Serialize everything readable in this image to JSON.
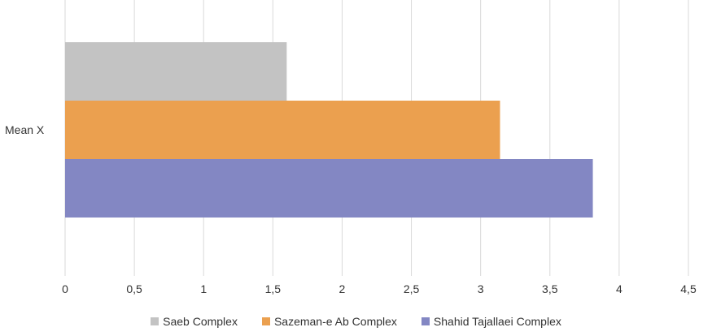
{
  "chart_data": {
    "type": "bar",
    "orientation": "horizontal",
    "categories": [
      "Mean X"
    ],
    "series": [
      {
        "name": "Saeb Complex",
        "values": [
          1.6
        ],
        "color": "#c3c3c3"
      },
      {
        "name": "Sazeman-e Ab Complex",
        "values": [
          3.14
        ],
        "color": "#eba04f"
      },
      {
        "name": "Shahid Tajallaei Complex",
        "values": [
          3.81
        ],
        "color": "#8387c3"
      }
    ],
    "xlim": [
      0,
      4.5
    ],
    "xticks": [
      "0",
      "0,5",
      "1",
      "1,5",
      "2",
      "2,5",
      "3",
      "3,5",
      "4",
      "4,5"
    ],
    "grid": true,
    "legend_position": "bottom",
    "title": "",
    "xlabel": "",
    "ylabel": ""
  }
}
